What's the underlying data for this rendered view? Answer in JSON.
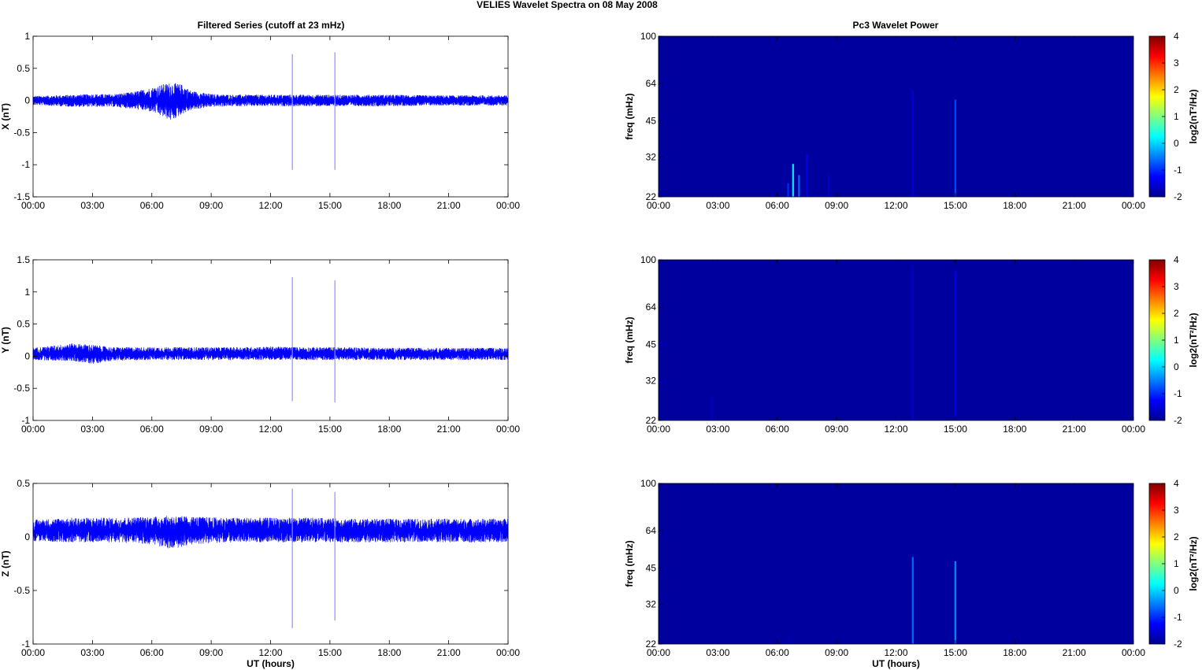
{
  "figure": {
    "title": "VELIES Wavelet Spectra on 08 May      2008",
    "left_title": "Filtered Series (cutoff at 23 mHz)",
    "right_title": "Pc3 Wavelet Power",
    "xlabel": "UT (hours)"
  },
  "colors": {
    "trace": "#0000ff",
    "spike": "#8f8fff",
    "spectrum_bg": "#000b8f"
  },
  "chart_data": [
    {
      "type": "line",
      "name": "X (nT)",
      "ylabel": "X (nT)",
      "ylim": [
        -1.5,
        1
      ],
      "yticks": [
        "1",
        "0.5",
        "0",
        "-0.5",
        "-1",
        "-1.5"
      ],
      "yticks_values": [
        1,
        0.5,
        0,
        -0.5,
        -1,
        -1.5
      ],
      "xlim_hours": [
        0,
        24
      ],
      "xticks": [
        "00:00",
        "03:00",
        "06:00",
        "09:00",
        "12:00",
        "15:00",
        "18:00",
        "21:00",
        "00:00"
      ],
      "envelope": {
        "x_hours": [
          0,
          2,
          3,
          4,
          5,
          6,
          6.5,
          7,
          7.5,
          8,
          9,
          10,
          12,
          14,
          16,
          18,
          20,
          22,
          24
        ],
        "upper": [
          0.07,
          0.09,
          0.1,
          0.1,
          0.13,
          0.2,
          0.25,
          0.28,
          0.25,
          0.15,
          0.1,
          0.09,
          0.09,
          0.09,
          0.09,
          0.09,
          0.08,
          0.08,
          0.08
        ],
        "lower": [
          -0.07,
          -0.1,
          -0.1,
          -0.1,
          -0.13,
          -0.18,
          -0.25,
          -0.32,
          -0.22,
          -0.15,
          -0.1,
          -0.09,
          -0.09,
          -0.09,
          -0.09,
          -0.09,
          -0.08,
          -0.08,
          -0.08
        ]
      },
      "spikes": [
        {
          "x_hours": 13.1,
          "min": -1.08,
          "max": 0.72
        },
        {
          "x_hours": 15.25,
          "min": -1.08,
          "max": 0.75
        }
      ]
    },
    {
      "type": "line",
      "name": "Y (nT)",
      "ylabel": "Y (nT)",
      "ylim": [
        -1,
        1.5
      ],
      "yticks": [
        "1.5",
        "1",
        "0.5",
        "0",
        "-0.5",
        "-1"
      ],
      "yticks_values": [
        1.5,
        1,
        0.5,
        0,
        -0.5,
        -1
      ],
      "xlim_hours": [
        0,
        24
      ],
      "xticks": [
        "00:00",
        "03:00",
        "06:00",
        "09:00",
        "12:00",
        "15:00",
        "18:00",
        "21:00",
        "00:00"
      ],
      "envelope": {
        "x_hours": [
          0,
          2,
          3,
          4,
          6,
          8,
          10,
          12,
          14,
          16,
          18,
          20,
          22,
          24
        ],
        "upper": [
          0.13,
          0.2,
          0.18,
          0.14,
          0.14,
          0.14,
          0.14,
          0.15,
          0.14,
          0.14,
          0.13,
          0.13,
          0.13,
          0.13
        ],
        "lower": [
          -0.06,
          -0.08,
          -0.12,
          -0.07,
          -0.06,
          -0.06,
          -0.06,
          -0.06,
          -0.06,
          -0.06,
          -0.06,
          -0.06,
          -0.06,
          -0.06
        ]
      },
      "spikes": [
        {
          "x_hours": 13.1,
          "min": -0.7,
          "max": 1.23
        },
        {
          "x_hours": 15.25,
          "min": -0.72,
          "max": 1.18
        }
      ]
    },
    {
      "type": "line",
      "name": "Z (nT)",
      "ylabel": "Z (nT)",
      "ylim": [
        -1,
        0.5
      ],
      "yticks": [
        "0.5",
        "0",
        "-0.5",
        "-1"
      ],
      "yticks_values": [
        0.5,
        0,
        -0.5,
        -1
      ],
      "xlim_hours": [
        0,
        24
      ],
      "xticks": [
        "00:00",
        "03:00",
        "06:00",
        "09:00",
        "12:00",
        "15:00",
        "18:00",
        "21:00",
        "00:00"
      ],
      "envelope": {
        "x_hours": [
          0,
          2,
          4,
          6,
          7,
          8,
          10,
          12,
          14,
          16,
          18,
          20,
          22,
          24
        ],
        "upper": [
          0.16,
          0.18,
          0.18,
          0.19,
          0.2,
          0.19,
          0.18,
          0.18,
          0.18,
          0.17,
          0.17,
          0.17,
          0.17,
          0.17
        ],
        "lower": [
          -0.04,
          -0.05,
          -0.05,
          -0.07,
          -0.12,
          -0.07,
          -0.05,
          -0.05,
          -0.05,
          -0.05,
          -0.05,
          -0.05,
          -0.05,
          -0.05
        ]
      },
      "spikes": [
        {
          "x_hours": 13.1,
          "min": -0.85,
          "max": 0.45
        },
        {
          "x_hours": 15.25,
          "min": -0.78,
          "max": 0.42
        }
      ]
    },
    {
      "type": "heatmap",
      "name": "X wavelet power",
      "ylabel": "freq (mHz)",
      "ylim": [
        22,
        100
      ],
      "yscale": "log",
      "yticks": [
        "100",
        "64",
        "45",
        "32",
        "22"
      ],
      "yticks_values": [
        100,
        64,
        45,
        32,
        22
      ],
      "xlim_hours": [
        0,
        24
      ],
      "xticks": [
        "00:00",
        "03:00",
        "06:00",
        "09:00",
        "12:00",
        "15:00",
        "18:00",
        "21:00",
        "00:00"
      ],
      "clim": [
        -2,
        4
      ],
      "colorbar_label": "log2(nT²/Hz)",
      "colorbar_ticks": [
        "4",
        "3",
        "2",
        "1",
        "0",
        "-1",
        "-2"
      ],
      "colorbar_values": [
        4,
        3,
        2,
        1,
        0,
        -1,
        -2
      ],
      "background": -1.9,
      "features": [
        {
          "x_hours": 6.8,
          "f_max": 30,
          "value": 0.2
        },
        {
          "x_hours": 7.1,
          "f_max": 27,
          "value": -0.6
        },
        {
          "x_hours": 6.55,
          "f_max": 25,
          "value": -1.0
        },
        {
          "x_hours": 7.5,
          "f_max": 33,
          "value": -1.4
        },
        {
          "x_hours": 8.6,
          "f_max": 27,
          "value": -1.6
        },
        {
          "x_hours": 12.85,
          "f_max": 60,
          "value": -1.5
        },
        {
          "x_hours": 15.0,
          "f_max": 55,
          "value": -0.8
        }
      ]
    },
    {
      "type": "heatmap",
      "name": "Y wavelet power",
      "ylabel": "freq (mHz)",
      "ylim": [
        22,
        100
      ],
      "yscale": "log",
      "yticks": [
        "100",
        "64",
        "45",
        "32",
        "22"
      ],
      "yticks_values": [
        100,
        64,
        45,
        32,
        22
      ],
      "xlim_hours": [
        0,
        24
      ],
      "xticks": [
        "00:00",
        "03:00",
        "06:00",
        "09:00",
        "12:00",
        "15:00",
        "18:00",
        "21:00",
        "00:00"
      ],
      "clim": [
        -2,
        4
      ],
      "colorbar_label": "log2(nT²/Hz)",
      "colorbar_ticks": [
        "4",
        "3",
        "2",
        "1",
        "0",
        "-1",
        "-2"
      ],
      "colorbar_values": [
        4,
        3,
        2,
        1,
        0,
        -1,
        -2
      ],
      "background": -1.9,
      "features": [
        {
          "x_hours": 2.7,
          "f_max": 28,
          "value": -1.7
        },
        {
          "x_hours": 12.85,
          "f_max": 95,
          "value": -1.6
        },
        {
          "x_hours": 15.0,
          "f_max": 90,
          "value": -1.4
        }
      ]
    },
    {
      "type": "heatmap",
      "name": "Z wavelet power",
      "ylabel": "freq (mHz)",
      "ylim": [
        22,
        100
      ],
      "yscale": "log",
      "yticks": [
        "100",
        "64",
        "45",
        "32",
        "22"
      ],
      "yticks_values": [
        100,
        64,
        45,
        32,
        22
      ],
      "xlim_hours": [
        0,
        24
      ],
      "xticks": [
        "00:00",
        "03:00",
        "06:00",
        "09:00",
        "12:00",
        "15:00",
        "18:00",
        "21:00",
        "00:00"
      ],
      "clim": [
        -2,
        4
      ],
      "colorbar_label": "log2(nT²/Hz)",
      "colorbar_ticks": [
        "4",
        "3",
        "2",
        "1",
        "0",
        "-1",
        "-2"
      ],
      "colorbar_values": [
        4,
        3,
        2,
        1,
        0,
        -1,
        -2
      ],
      "background": -1.9,
      "features": [
        {
          "x_hours": 6.6,
          "f_max": 24,
          "value": -1.7
        },
        {
          "x_hours": 12.85,
          "f_max": 50,
          "value": -0.6
        },
        {
          "x_hours": 15.0,
          "f_max": 48,
          "value": -0.4
        }
      ]
    }
  ]
}
